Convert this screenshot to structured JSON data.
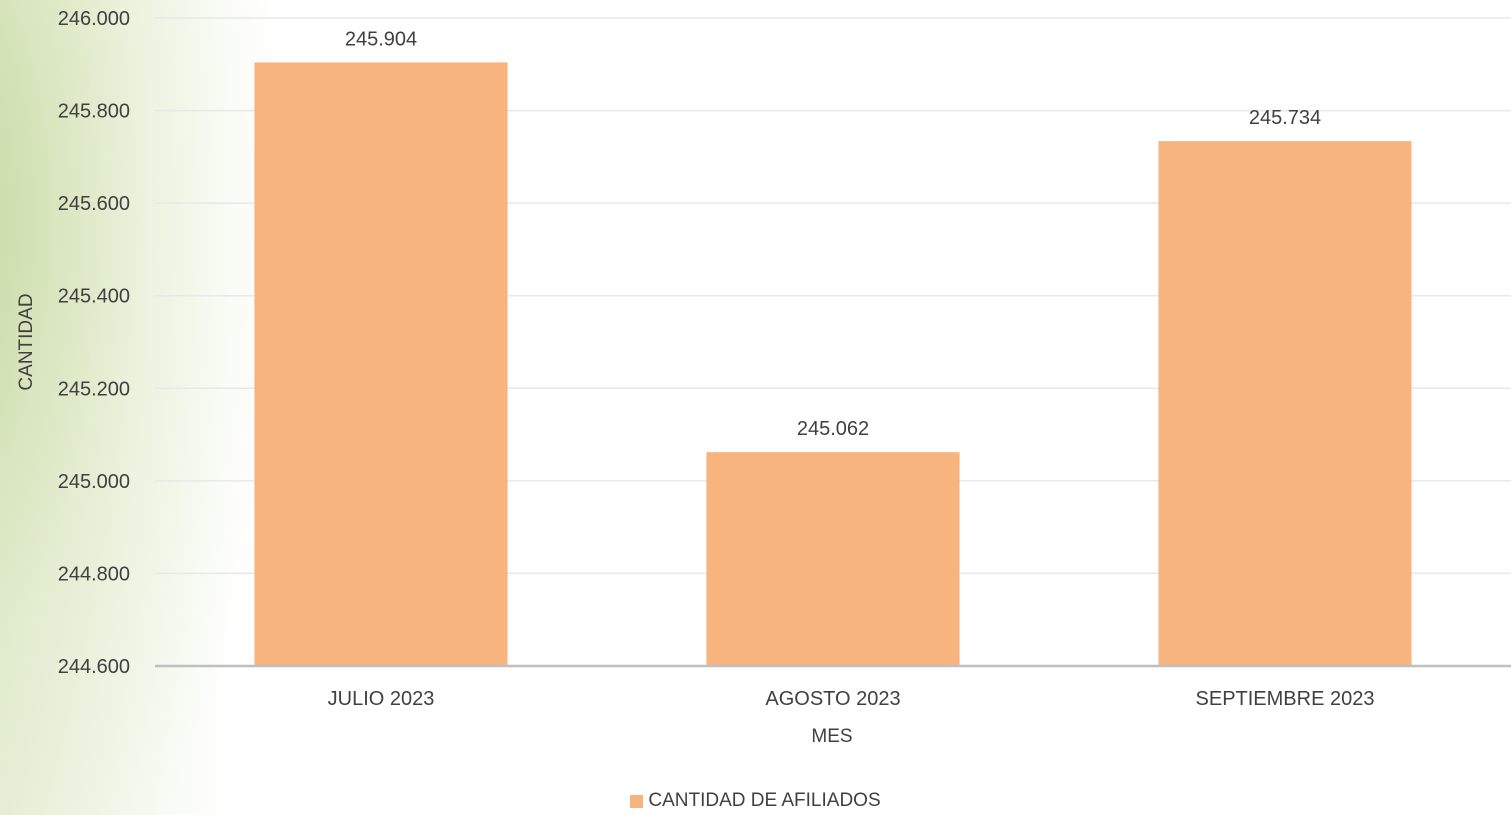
{
  "chart_data": {
    "type": "bar",
    "categories": [
      "JULIO 2023",
      "AGOSTO 2023",
      "SEPTIEMBRE 2023"
    ],
    "series": [
      {
        "name": "CANTIDAD DE AFILIADOS",
        "values": [
          245904,
          245062,
          245734
        ]
      }
    ],
    "data_labels": [
      "245.904",
      "245.062",
      "245.734"
    ],
    "ylim": [
      244600,
      246000
    ],
    "yticks": [
      244600,
      244800,
      245000,
      245200,
      245400,
      245600,
      245800,
      246000
    ],
    "ytick_labels": [
      "244.600",
      "244.800",
      "245.000",
      "245.200",
      "245.400",
      "245.600",
      "245.800",
      "246.000"
    ],
    "xlabel": "MES",
    "ylabel": "CANTIDAD",
    "grid": true,
    "legend_position": "bottom",
    "colors": {
      "bar": "#F8B47E",
      "grid": "#E8E8E8",
      "axis": "#BFBFBF",
      "text": "#404040"
    }
  }
}
